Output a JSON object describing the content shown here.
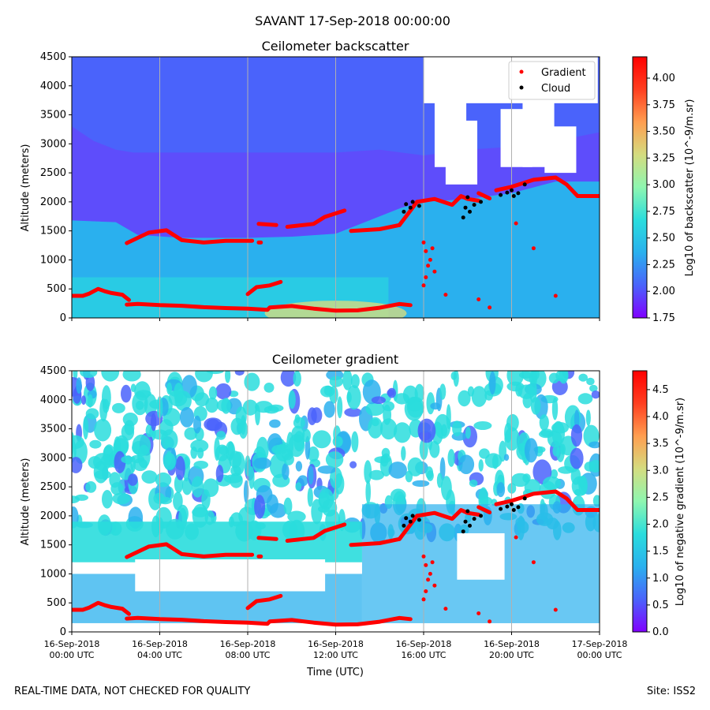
{
  "suptitle": "SAVANT 17-Sep-2018 00:00:00",
  "footer": {
    "left": "REAL-TIME DATA, NOT CHECKED FOR QUALITY",
    "right": "Site: ISS2"
  },
  "colors": {
    "gradient_marker": "#ff0000",
    "cloud_marker": "#000000",
    "colormap": [
      "#8000ff",
      "#4a63fb",
      "#2ab0ee",
      "#2adddd",
      "#8ef6b0",
      "#d4dc7f",
      "#ff9e50",
      "#ff3f20",
      "#ff0000"
    ]
  },
  "chart_data": [
    {
      "type": "heatmap",
      "title": "Ceilometer backscatter",
      "ylabel": "Altitude (meters)",
      "xlabel": "",
      "ylim": [
        0,
        4500
      ],
      "yticks": [
        0,
        500,
        1000,
        1500,
        2000,
        2500,
        3000,
        3500,
        4000,
        4500
      ],
      "xlim_hours": [
        0,
        24
      ],
      "vgrid_hours": [
        4,
        8,
        12,
        16,
        20
      ],
      "colorbar": {
        "label": "Log10 of backscatter (10^-9/m.sr)",
        "range": [
          1.75,
          4.2
        ],
        "ticks": [
          "1.75",
          "2.00",
          "2.25",
          "2.50",
          "2.75",
          "3.00",
          "3.25",
          "3.50",
          "3.75",
          "4.00"
        ]
      },
      "legend": {
        "position": "upper right",
        "entries": [
          {
            "label": "Gradient",
            "color": "#ff0000"
          },
          {
            "label": "Cloud",
            "color": "#000000"
          }
        ]
      },
      "series": [
        {
          "name": "Gradient",
          "segments": [
            [
              [
                0,
                380
              ],
              [
                0.5,
                380
              ],
              [
                0.8,
                420
              ],
              [
                1.2,
                500
              ],
              [
                1.5,
                460
              ],
              [
                1.8,
                430
              ],
              [
                2.3,
                400
              ],
              [
                2.6,
                310
              ]
            ],
            [
              [
                2.5,
                230
              ],
              [
                3,
                240
              ],
              [
                4,
                220
              ],
              [
                5,
                210
              ],
              [
                6,
                185
              ],
              [
                7,
                170
              ],
              [
                8,
                160
              ],
              [
                8.9,
                140
              ],
              [
                9,
                180
              ],
              [
                10,
                205
              ],
              [
                11,
                160
              ],
              [
                12,
                125
              ],
              [
                13,
                130
              ],
              [
                14,
                175
              ],
              [
                14.9,
                240
              ],
              [
                15.4,
                220
              ]
            ],
            [
              [
                2.5,
                1290
              ],
              [
                3,
                1380
              ],
              [
                3.5,
                1470
              ],
              [
                4.3,
                1510
              ],
              [
                5,
                1340
              ],
              [
                6,
                1300
              ],
              [
                7,
                1330
              ],
              [
                8.2,
                1330
              ]
            ],
            [
              [
                8.5,
                1300
              ],
              [
                8.6,
                1300
              ]
            ],
            [
              [
                8,
                410
              ],
              [
                8.4,
                530
              ],
              [
                9,
                560
              ],
              [
                9.5,
                620
              ]
            ],
            [
              [
                8.5,
                1620
              ],
              [
                9.3,
                1600
              ]
            ],
            [
              [
                9.8,
                1570
              ],
              [
                11,
                1620
              ],
              [
                11.5,
                1740
              ],
              [
                12.4,
                1850
              ]
            ],
            [
              [
                12.7,
                1500
              ],
              [
                14,
                1530
              ],
              [
                14.9,
                1600
              ]
            ],
            [
              [
                14.9,
                1600
              ],
              [
                15.3,
                1800
              ],
              [
                15.7,
                2000
              ]
            ],
            [
              [
                15.7,
                2000
              ],
              [
                16.5,
                2050
              ],
              [
                17.3,
                1950
              ],
              [
                17.7,
                2100
              ],
              [
                18,
                2050
              ],
              [
                18.5,
                2020
              ]
            ],
            [
              [
                18.5,
                2150
              ],
              [
                19,
                2060
              ]
            ],
            [
              [
                19.3,
                2200
              ],
              [
                20,
                2260
              ],
              [
                21,
                2380
              ],
              [
                22,
                2420
              ],
              [
                22.5,
                2300
              ],
              [
                23,
                2100
              ],
              [
                24,
                2100
              ]
            ]
          ],
          "points": [
            [
              16,
              1300
            ],
            [
              16.1,
              1150
            ],
            [
              16.2,
              900
            ],
            [
              16.1,
              700
            ],
            [
              16,
              560
            ],
            [
              16.3,
              1000
            ],
            [
              16.4,
              1200
            ],
            [
              16.5,
              800
            ],
            [
              17,
              400
            ],
            [
              18.5,
              320
            ],
            [
              19,
              180
            ],
            [
              22,
              380
            ],
            [
              21,
              1200
            ],
            [
              20.2,
              1630
            ]
          ]
        },
        {
          "name": "Cloud",
          "points": [
            [
              15.1,
              1830
            ],
            [
              15.2,
              1960
            ],
            [
              15.4,
              1900
            ],
            [
              15.5,
              2000
            ],
            [
              15.8,
              1930
            ],
            [
              17.8,
              1730
            ],
            [
              17.9,
              1900
            ],
            [
              18,
              2080
            ],
            [
              18.1,
              1830
            ],
            [
              18.3,
              1950
            ],
            [
              18.6,
              2000
            ],
            [
              19.5,
              2120
            ],
            [
              19.8,
              2160
            ],
            [
              20,
              2200
            ],
            [
              20.1,
              2100
            ],
            [
              20.3,
              2150
            ],
            [
              20.6,
              2300
            ]
          ]
        }
      ]
    },
    {
      "type": "heatmap",
      "title": "Ceilometer gradient",
      "ylabel": "Altitude (meters)",
      "xlabel": "Time (UTC)",
      "ylim": [
        0,
        4500
      ],
      "yticks": [
        0,
        500,
        1000,
        1500,
        2000,
        2500,
        3000,
        3500,
        4000,
        4500
      ],
      "xlim_hours": [
        0,
        24
      ],
      "vgrid_hours": [
        4,
        8,
        12,
        16,
        20
      ],
      "xticks": [
        {
          "hour": 0,
          "line1": "16-Sep-2018",
          "line2": "00:00 UTC"
        },
        {
          "hour": 4,
          "line1": "16-Sep-2018",
          "line2": "04:00 UTC"
        },
        {
          "hour": 8,
          "line1": "16-Sep-2018",
          "line2": "08:00 UTC"
        },
        {
          "hour": 12,
          "line1": "16-Sep-2018",
          "line2": "12:00 UTC"
        },
        {
          "hour": 16,
          "line1": "16-Sep-2018",
          "line2": "16:00 UTC"
        },
        {
          "hour": 20,
          "line1": "16-Sep-2018",
          "line2": "20:00 UTC"
        },
        {
          "hour": 24,
          "line1": "17-Sep-2018",
          "line2": "00:00 UTC"
        }
      ],
      "colorbar": {
        "label": "Log10 of negative gradient (10^-9/m.sr)",
        "range": [
          0,
          4.85
        ],
        "ticks": [
          "0.0",
          "0.5",
          "1.0",
          "1.5",
          "2.0",
          "2.5",
          "3.0",
          "3.5",
          "4.0",
          "4.5"
        ]
      },
      "series": [
        {
          "name": "Gradient",
          "segments": [
            [
              [
                0,
                380
              ],
              [
                0.5,
                380
              ],
              [
                0.8,
                420
              ],
              [
                1.2,
                500
              ],
              [
                1.5,
                460
              ],
              [
                1.8,
                430
              ],
              [
                2.3,
                400
              ],
              [
                2.6,
                310
              ]
            ],
            [
              [
                2.5,
                230
              ],
              [
                3,
                240
              ],
              [
                4,
                220
              ],
              [
                5,
                210
              ],
              [
                6,
                185
              ],
              [
                7,
                170
              ],
              [
                8,
                160
              ],
              [
                8.9,
                140
              ],
              [
                9,
                180
              ],
              [
                10,
                205
              ],
              [
                11,
                160
              ],
              [
                12,
                125
              ],
              [
                13,
                130
              ],
              [
                14,
                175
              ],
              [
                14.9,
                240
              ],
              [
                15.4,
                220
              ]
            ],
            [
              [
                2.5,
                1290
              ],
              [
                3,
                1380
              ],
              [
                3.5,
                1470
              ],
              [
                4.3,
                1510
              ],
              [
                5,
                1340
              ],
              [
                6,
                1300
              ],
              [
                7,
                1330
              ],
              [
                8.2,
                1330
              ]
            ],
            [
              [
                8.5,
                1300
              ],
              [
                8.6,
                1300
              ]
            ],
            [
              [
                8,
                410
              ],
              [
                8.4,
                530
              ],
              [
                9,
                560
              ],
              [
                9.5,
                620
              ]
            ],
            [
              [
                8.5,
                1620
              ],
              [
                9.3,
                1600
              ]
            ],
            [
              [
                9.8,
                1570
              ],
              [
                11,
                1620
              ],
              [
                11.5,
                1740
              ],
              [
                12.4,
                1850
              ]
            ],
            [
              [
                12.7,
                1500
              ],
              [
                14,
                1530
              ],
              [
                14.9,
                1600
              ]
            ],
            [
              [
                14.9,
                1600
              ],
              [
                15.3,
                1800
              ],
              [
                15.7,
                2000
              ]
            ],
            [
              [
                15.7,
                2000
              ],
              [
                16.5,
                2050
              ],
              [
                17.3,
                1950
              ],
              [
                17.7,
                2100
              ],
              [
                18,
                2050
              ],
              [
                18.5,
                2020
              ]
            ],
            [
              [
                18.5,
                2150
              ],
              [
                19,
                2060
              ]
            ],
            [
              [
                19.3,
                2200
              ],
              [
                20,
                2260
              ],
              [
                21,
                2380
              ],
              [
                22,
                2420
              ],
              [
                22.5,
                2300
              ],
              [
                23,
                2100
              ],
              [
                24,
                2100
              ]
            ]
          ],
          "points": [
            [
              16,
              1300
            ],
            [
              16.1,
              1150
            ],
            [
              16.2,
              900
            ],
            [
              16.1,
              700
            ],
            [
              16,
              560
            ],
            [
              16.3,
              1000
            ],
            [
              16.4,
              1200
            ],
            [
              16.5,
              800
            ],
            [
              17,
              400
            ],
            [
              18.5,
              320
            ],
            [
              19,
              180
            ],
            [
              22,
              380
            ],
            [
              21,
              1200
            ],
            [
              20.2,
              1630
            ]
          ]
        },
        {
          "name": "Cloud",
          "points": [
            [
              15.1,
              1830
            ],
            [
              15.2,
              1960
            ],
            [
              15.4,
              1900
            ],
            [
              15.5,
              2000
            ],
            [
              15.8,
              1930
            ],
            [
              17.8,
              1730
            ],
            [
              17.9,
              1900
            ],
            [
              18,
              2080
            ],
            [
              18.1,
              1830
            ],
            [
              18.3,
              1950
            ],
            [
              18.6,
              2000
            ],
            [
              19.5,
              2120
            ],
            [
              19.8,
              2160
            ],
            [
              20,
              2200
            ],
            [
              20.1,
              2100
            ],
            [
              20.3,
              2150
            ],
            [
              20.6,
              2300
            ]
          ]
        }
      ]
    }
  ]
}
